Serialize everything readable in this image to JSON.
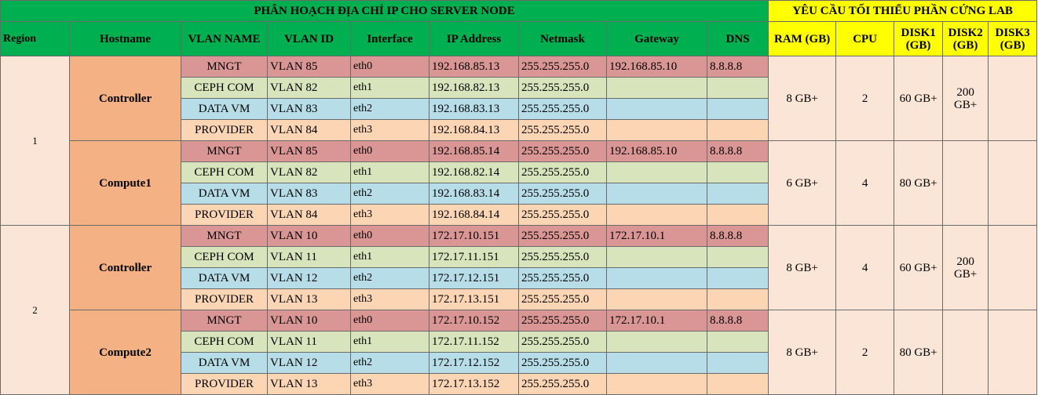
{
  "title_left": "PHÂN HOẠCH ĐỊA CHỈ IP CHO SERVER NODE",
  "title_right": "YÊU CẦU TỐI THIỂU PHẦN CỨNG LAB",
  "headers": {
    "region": "Region",
    "hostname": "Hostname",
    "vlan_name": "VLAN NAME",
    "vlan_id": "VLAN ID",
    "interface": "Interface",
    "ip": "IP Address",
    "netmask": "Netmask",
    "gateway": "Gateway",
    "dns": "DNS",
    "ram": "RAM (GB)",
    "cpu": "CPU",
    "disk1": "DISK1 (GB)",
    "disk2": "DISK2 (GB)",
    "disk3": "DISK3 (GB)"
  },
  "regions": [
    {
      "name": "1",
      "hosts": [
        {
          "hostname": "Controller",
          "ram": "8 GB+",
          "cpu": "2",
          "disk1": "60 GB+",
          "disk2": "200 GB+",
          "disk3": "",
          "rows": [
            {
              "vlan_name": "MNGT",
              "vlan_id": "VLAN 85",
              "iface": "eth0",
              "ip": "192.168.85.13",
              "mask": "255.255.255.0",
              "gw": "192.168.85.10",
              "dns": "8.8.8.8"
            },
            {
              "vlan_name": "CEPH COM",
              "vlan_id": "VLAN 82",
              "iface": "eth1",
              "ip": "192.168.82.13",
              "mask": "255.255.255.0",
              "gw": "",
              "dns": ""
            },
            {
              "vlan_name": "DATA VM",
              "vlan_id": "VLAN 83",
              "iface": "eth2",
              "ip": "192.168.83.13",
              "mask": "255.255.255.0",
              "gw": "",
              "dns": ""
            },
            {
              "vlan_name": "PROVIDER",
              "vlan_id": "VLAN 84",
              "iface": "eth3",
              "ip": "192.168.84.13",
              "mask": "255.255.255.0",
              "gw": "",
              "dns": ""
            }
          ]
        },
        {
          "hostname": "Compute1",
          "ram": "6 GB+",
          "cpu": "4",
          "disk1": "80 GB+",
          "disk2": "",
          "disk3": "",
          "rows": [
            {
              "vlan_name": "MNGT",
              "vlan_id": "VLAN 85",
              "iface": "eth0",
              "ip": "192.168.85.14",
              "mask": "255.255.255.0",
              "gw": "192.168.85.10",
              "dns": "8.8.8.8"
            },
            {
              "vlan_name": "CEPH COM",
              "vlan_id": "VLAN 82",
              "iface": "eth1",
              "ip": "192.168.82.14",
              "mask": "255.255.255.0",
              "gw": "",
              "dns": ""
            },
            {
              "vlan_name": "DATA VM",
              "vlan_id": "VLAN 83",
              "iface": "eth2",
              "ip": "192.168.83.14",
              "mask": "255.255.255.0",
              "gw": "",
              "dns": ""
            },
            {
              "vlan_name": "PROVIDER",
              "vlan_id": "VLAN 84",
              "iface": "eth3",
              "ip": "192.168.84.14",
              "mask": "255.255.255.0",
              "gw": "",
              "dns": ""
            }
          ]
        }
      ]
    },
    {
      "name": "2",
      "hosts": [
        {
          "hostname": "Controller",
          "ram": "8 GB+",
          "cpu": "4",
          "disk1": "60 GB+",
          "disk2": "200 GB+",
          "disk3": "",
          "rows": [
            {
              "vlan_name": "MNGT",
              "vlan_id": "VLAN 10",
              "iface": "eth0",
              "ip": "172.17.10.151",
              "mask": "255.255.255.0",
              "gw": "172.17.10.1",
              "dns": "8.8.8.8"
            },
            {
              "vlan_name": "CEPH COM",
              "vlan_id": "VLAN 11",
              "iface": "eth1",
              "ip": "172.17.11.151",
              "mask": "255.255.255.0",
              "gw": "",
              "dns": ""
            },
            {
              "vlan_name": "DATA VM",
              "vlan_id": "VLAN 12",
              "iface": "eth2",
              "ip": "172.17.12.151",
              "mask": "255.255.255.0",
              "gw": "",
              "dns": ""
            },
            {
              "vlan_name": "PROVIDER",
              "vlan_id": "VLAN 13",
              "iface": "eth3",
              "ip": "172.17.13.151",
              "mask": "255.255.255.0",
              "gw": "",
              "dns": ""
            }
          ]
        },
        {
          "hostname": "Compute2",
          "ram": "8 GB+",
          "cpu": "2",
          "disk1": "80 GB+",
          "disk2": "",
          "disk3": "",
          "rows": [
            {
              "vlan_name": "MNGT",
              "vlan_id": "VLAN 10",
              "iface": "eth0",
              "ip": "172.17.10.152",
              "mask": "255.255.255.0",
              "gw": "172.17.10.1",
              "dns": "8.8.8.8"
            },
            {
              "vlan_name": "CEPH COM",
              "vlan_id": "VLAN 11",
              "iface": "eth1",
              "ip": "172.17.11.152",
              "mask": "255.255.255.0",
              "gw": "",
              "dns": ""
            },
            {
              "vlan_name": "DATA VM",
              "vlan_id": "VLAN 12",
              "iface": "eth2",
              "ip": "172.17.12.152",
              "mask": "255.255.255.0",
              "gw": "",
              "dns": ""
            },
            {
              "vlan_name": "PROVIDER",
              "vlan_id": "VLAN 13",
              "iface": "eth3",
              "ip": "172.17.13.152",
              "mask": "255.255.255.0",
              "gw": "",
              "dns": ""
            }
          ]
        }
      ]
    }
  ]
}
